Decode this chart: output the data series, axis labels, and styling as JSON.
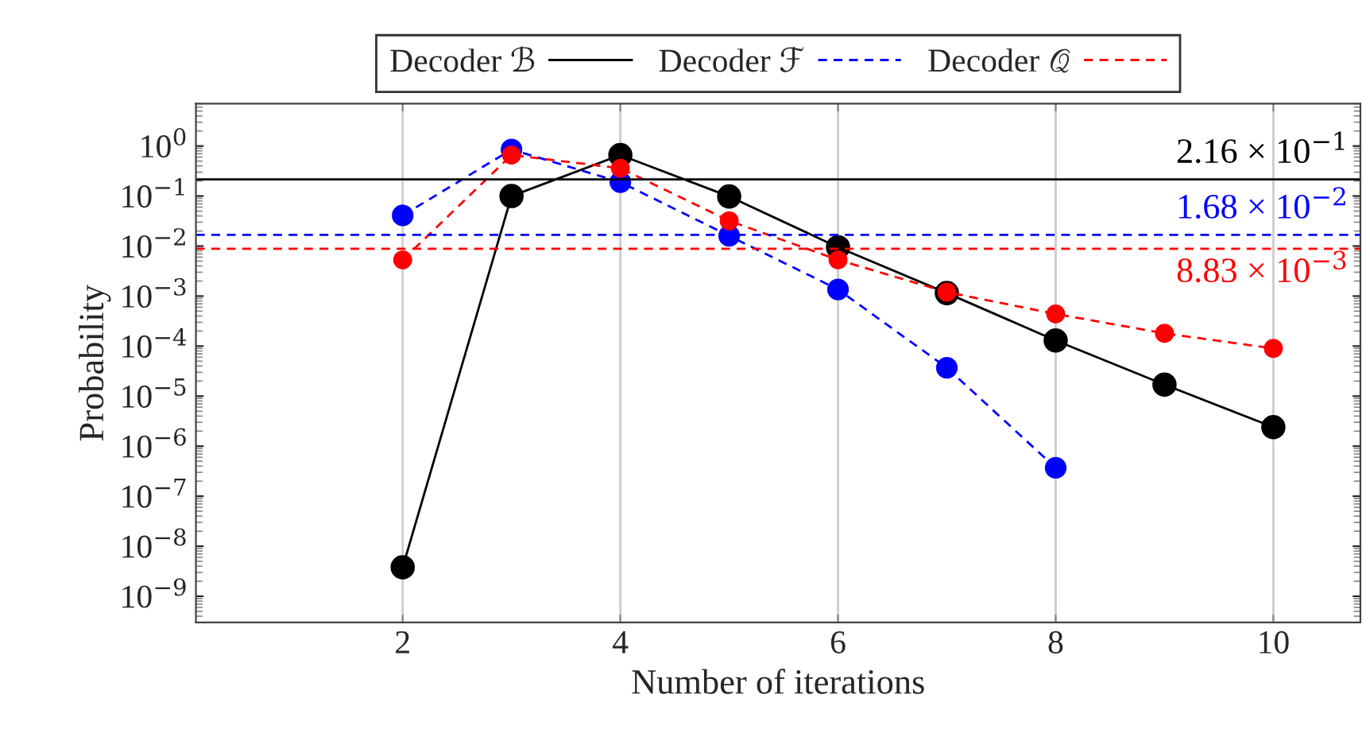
{
  "chart_data": {
    "type": "line",
    "xlabel": "Number of iterations",
    "ylabel": "Probability",
    "x": [
      2,
      3,
      4,
      5,
      6,
      7,
      8,
      9,
      10
    ],
    "series": [
      {
        "name": "Decoder ℬ",
        "color": "#000000",
        "line_style": "solid",
        "values": [
          3.8e-09,
          0.1,
          0.66,
          0.098,
          0.0095,
          0.00115,
          0.00013,
          1.7e-05,
          2.4e-06
        ]
      },
      {
        "name": "Decoder ℱ",
        "color": "#0000ff",
        "line_style": "dashed",
        "values": [
          0.041,
          0.85,
          0.19,
          0.016,
          0.00136,
          3.7e-05,
          3.7e-07,
          null,
          null
        ]
      },
      {
        "name": "Decoder 𝒬",
        "color": "#ff0000",
        "line_style": "dashed",
        "values": [
          0.0053,
          0.66,
          0.36,
          0.032,
          0.0053,
          0.0012,
          0.00044,
          0.00018,
          9e-05
        ]
      }
    ],
    "ref_lines": [
      {
        "axis": "y",
        "value": 0.216,
        "label": "2.16 × 10$^{−1}$",
        "color": "#000000",
        "line_style": "solid"
      },
      {
        "axis": "y",
        "value": 0.0168,
        "label": "1.68 × 10$^{−2}$",
        "color": "#0000ff",
        "line_style": "dashed"
      },
      {
        "axis": "y",
        "value": 0.00883,
        "label": "8.83 × 10$^{−3}$",
        "color": "#ff0000",
        "line_style": "dashed"
      }
    ],
    "log": "y",
    "xlim": [
      0.1,
      10.8
    ],
    "ylim": [
      3e-10,
      7
    ],
    "xticks": [
      2,
      4,
      6,
      8,
      10
    ],
    "yticks": [
      {
        "value": 1,
        "label": "10$^{0}$"
      },
      {
        "value": 0.1,
        "label": "10$^{−1}$"
      },
      {
        "value": 0.01,
        "label": "10$^{−2}$"
      },
      {
        "value": 0.001,
        "label": "10$^{−3}$"
      },
      {
        "value": 0.0001,
        "label": "10$^{−4}$"
      },
      {
        "value": 1e-05,
        "label": "10$^{−5}$"
      },
      {
        "value": 1e-06,
        "label": "10$^{−6}$"
      },
      {
        "value": 1e-07,
        "label": "10$^{−7}$"
      },
      {
        "value": 1e-08,
        "label": "10$^{−8}$"
      },
      {
        "value": 1e-09,
        "label": "10$^{−9}$"
      }
    ],
    "grid": "x",
    "legend": "top",
    "marker": "circle"
  }
}
